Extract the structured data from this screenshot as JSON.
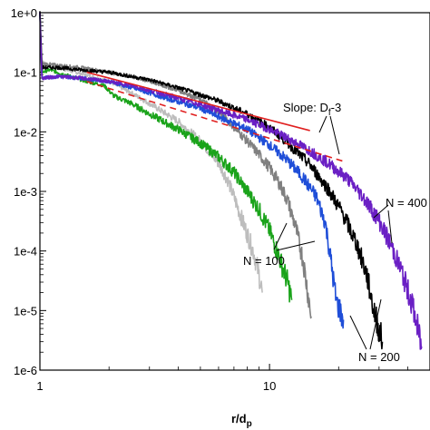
{
  "chart_data": {
    "type": "line",
    "title": "",
    "xlabel": {
      "main": "r/d",
      "sub": "p"
    },
    "ylabel": "",
    "x_scale": "log",
    "y_scale": "log",
    "xlim": [
      1,
      50
    ],
    "ylim": [
      1e-06,
      1
    ],
    "x_ticks": [
      {
        "value": 1,
        "label": "1"
      },
      {
        "value": 10,
        "label": "10"
      }
    ],
    "y_ticks": [
      {
        "value": 1,
        "label": "1e+0"
      },
      {
        "value": 0.1,
        "label": "1e-1"
      },
      {
        "value": 0.01,
        "label": "1e-2"
      },
      {
        "value": 0.001,
        "label": "1e-3"
      },
      {
        "value": 0.0001,
        "label": "1e-4"
      },
      {
        "value": 1e-05,
        "label": "1e-5"
      },
      {
        "value": 1e-06,
        "label": "1e-6"
      }
    ],
    "grid": false,
    "legend": "none",
    "series": [
      {
        "color": "#bdbdbd",
        "style": "noisy",
        "x": [
          1,
          1.02,
          1.1,
          1.3,
          1.6,
          2.0,
          2.5,
          3.0,
          4.0,
          5.0,
          6.0,
          6.6,
          7.2,
          7.8,
          8.5,
          9.0,
          9.3
        ],
        "y": [
          1,
          0.15,
          0.13,
          0.11,
          0.09,
          0.07,
          0.045,
          0.03,
          0.015,
          0.007,
          0.003,
          0.0015,
          0.0006,
          0.00025,
          0.0001,
          4e-05,
          2e-05
        ]
      },
      {
        "color": "#1aa31a",
        "style": "noisy",
        "x": [
          1,
          1.02,
          1.1,
          1.3,
          1.6,
          1.9,
          2.1,
          2.5,
          3.0,
          4.0,
          5.0,
          6.0,
          7.0,
          8.0,
          9.0,
          10.0,
          11.0,
          12.0,
          12.5
        ],
        "y": [
          1,
          0.1,
          0.11,
          0.09,
          0.07,
          0.06,
          0.04,
          0.03,
          0.02,
          0.011,
          0.0065,
          0.0038,
          0.0021,
          0.001,
          0.0005,
          0.00022,
          8e-05,
          3e-05,
          1.5e-05
        ]
      },
      {
        "color": "#808080",
        "style": "noisy",
        "x": [
          1,
          1.02,
          1.2,
          1.5,
          2.0,
          2.5,
          3.0,
          4.0,
          5.0,
          6.0,
          7.0,
          8.0,
          9.0,
          10.0,
          11.0,
          12.0,
          13.0,
          14.0,
          15.2
        ],
        "y": [
          1,
          0.14,
          0.13,
          0.12,
          0.1,
          0.085,
          0.07,
          0.05,
          0.035,
          0.022,
          0.012,
          0.007,
          0.0042,
          0.0025,
          0.0014,
          0.0007,
          0.00025,
          7e-05,
          8e-06
        ]
      },
      {
        "color": "#1f4ed8",
        "style": "noisy",
        "x": [
          1,
          1.02,
          1.2,
          1.5,
          2.0,
          2.5,
          3.0,
          4.0,
          5.0,
          6.0,
          8.0,
          10.0,
          12.0,
          14.0,
          16.0,
          17.5,
          18.5,
          19.5,
          21.0
        ],
        "y": [
          1,
          0.08,
          0.085,
          0.08,
          0.07,
          0.055,
          0.045,
          0.032,
          0.025,
          0.018,
          0.011,
          0.006,
          0.0033,
          0.0017,
          0.0008,
          0.0003,
          7e-05,
          1.5e-05,
          7e-06
        ]
      },
      {
        "color": "#000000",
        "style": "noisy",
        "x": [
          1,
          1.02,
          1.2,
          1.5,
          2.0,
          2.5,
          3.0,
          4.0,
          5.0,
          6.0,
          8.0,
          10.0,
          12.0,
          15.0,
          18.0,
          21.0,
          24.0,
          26.5,
          28.5,
          31.0
        ],
        "y": [
          1,
          0.12,
          0.12,
          0.11,
          0.1,
          0.085,
          0.075,
          0.055,
          0.042,
          0.033,
          0.02,
          0.012,
          0.0065,
          0.0028,
          0.0011,
          0.0004,
          0.00013,
          4e-05,
          1e-05,
          3e-06
        ]
      },
      {
        "color": "#6a1fc4",
        "style": "noisy",
        "x": [
          1,
          1.02,
          1.2,
          1.5,
          2.0,
          2.5,
          3.0,
          4.0,
          5.0,
          6.0,
          8.0,
          10.0,
          12.0,
          15.0,
          18.0,
          22.0,
          26.0,
          30.0,
          34.0,
          38.0,
          42.0,
          46.0
        ],
        "y": [
          1,
          0.08,
          0.085,
          0.08,
          0.07,
          0.06,
          0.05,
          0.037,
          0.029,
          0.023,
          0.016,
          0.011,
          0.0078,
          0.0048,
          0.003,
          0.0016,
          0.00075,
          0.00032,
          0.00012,
          4e-05,
          1.2e-05,
          2.5e-06
        ]
      }
    ],
    "fit_lines": [
      {
        "color": "#e02020",
        "dash": false,
        "x": [
          1.6,
          15.0
        ],
        "y": [
          0.1,
          0.0105
        ]
      },
      {
        "color": "#e02020",
        "dash": true,
        "x": [
          1.6,
          21.0
        ],
        "y": [
          0.07,
          0.0032
        ]
      }
    ],
    "annotations": [
      {
        "id": "slope",
        "text_main": "Slope: D",
        "text_sub": "f",
        "text_tail": "-3"
      },
      {
        "id": "n100",
        "text": "N = 100"
      },
      {
        "id": "n200",
        "text": "N = 200"
      },
      {
        "id": "n400",
        "text": "N = 400"
      }
    ]
  }
}
